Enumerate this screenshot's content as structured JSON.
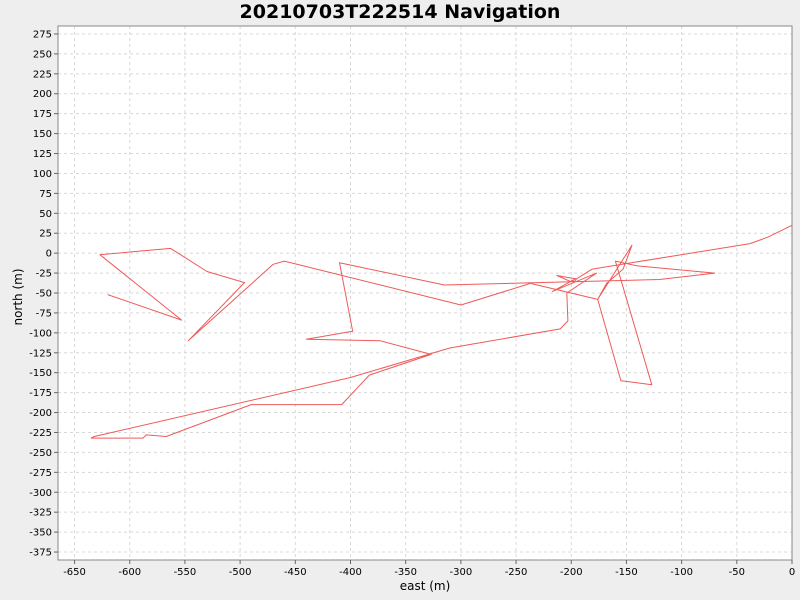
{
  "chart_data": {
    "type": "line",
    "title": "20210703T222514 Navigation",
    "xlabel": "east (m)",
    "ylabel": "north (m)",
    "xlim": [
      -665,
      0
    ],
    "ylim": [
      -385,
      285
    ],
    "xticks": [
      -650,
      -600,
      -550,
      -500,
      -450,
      -400,
      -350,
      -300,
      -250,
      -200,
      -150,
      -100,
      -50,
      0
    ],
    "yticks": [
      275,
      250,
      225,
      200,
      175,
      150,
      125,
      100,
      75,
      50,
      25,
      0,
      -25,
      -50,
      -75,
      -100,
      -125,
      -150,
      -175,
      -200,
      -225,
      -250,
      -275,
      -300,
      -325,
      -350,
      -375
    ],
    "grid": true,
    "series": [
      {
        "color": "#ee5a5a",
        "x": [
          -620,
          -553,
          -627,
          -563,
          -530,
          -496,
          -547,
          -470,
          -460,
          -300,
          -237,
          -176,
          -168,
          -153,
          -145,
          -176,
          -155,
          -127,
          -160,
          -140,
          -70,
          -120,
          -315,
          -410,
          -398,
          -440,
          -373,
          -327,
          -383,
          -408,
          -490,
          -567,
          -585,
          -588,
          -635,
          -632,
          -400,
          -310,
          -210,
          -203,
          -204,
          -177,
          -217,
          -196,
          -205,
          -213,
          -200,
          -198,
          -198,
          -195,
          -181,
          -38,
          -22,
          0
        ],
        "y": [
          -52,
          -84,
          -2,
          6,
          -23,
          -37,
          -110,
          -14,
          -10,
          -65,
          -38,
          -58,
          -38,
          -20,
          10,
          -58,
          -160,
          -165,
          -10,
          -16,
          -25,
          -33,
          -40,
          -12,
          -98,
          -108,
          -110,
          -127,
          -153,
          -190,
          -190,
          -230,
          -228,
          -232,
          -232,
          -230,
          -156,
          -119,
          -95,
          -85,
          -50,
          -25,
          -48,
          -32,
          -30,
          -28,
          -36,
          -35,
          -37,
          -32,
          -20,
          12,
          20,
          35
        ]
      }
    ]
  }
}
